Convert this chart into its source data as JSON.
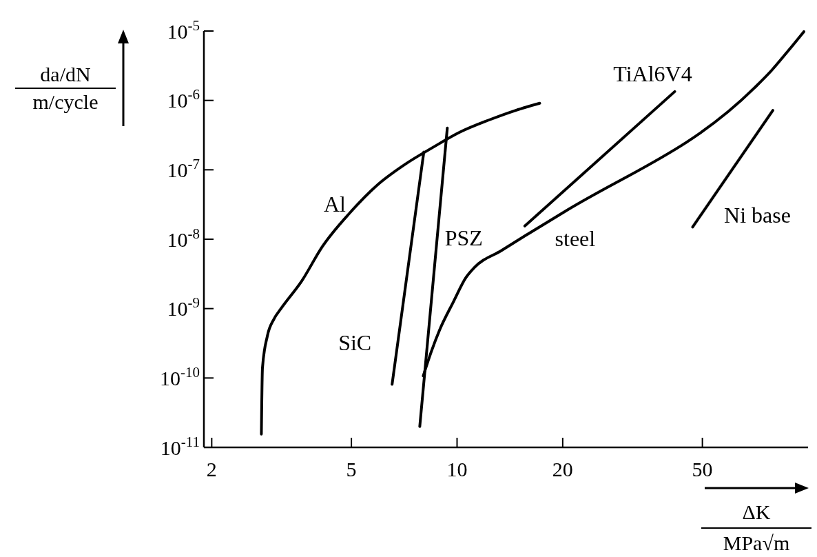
{
  "chart_data": {
    "type": "line",
    "xlabel": "ΔK\nMPa√m",
    "ylabel": "da/dN\nm/cycle",
    "log": "xy",
    "xlim": [
      1.9,
      100
    ],
    "ylim": [
      1e-11,
      1e-05
    ],
    "xticks": [
      2,
      5,
      10,
      20,
      50
    ],
    "yticks": [
      {
        "value": 1e-11,
        "label": "10$^{-11}$"
      },
      {
        "value": 1e-10,
        "label": "10$^{-10}$"
      },
      {
        "value": 1e-09,
        "label": "10$^{-9}$"
      },
      {
        "value": 1e-08,
        "label": "10$^{-8}$"
      },
      {
        "value": 1e-07,
        "label": "10$^{-7}$"
      },
      {
        "value": 1e-06,
        "label": "10$^{-6}$"
      },
      {
        "value": 1e-05,
        "label": "10$^{-5}$"
      }
    ],
    "grid": false,
    "series": [
      {
        "name": "Al",
        "color": "#000000",
        "x": [
          2.77,
          2.79,
          2.88,
          3.01,
          3.15,
          3.61,
          4.13,
          4.95,
          5.94,
          7.11,
          8.53,
          10.2,
          12.3,
          14.7,
          17.2
        ],
        "values": [
          1.55e-11,
          1.4e-10,
          4e-10,
          7.1e-10,
          1e-09,
          2.5e-09,
          7.8e-09,
          2.4e-08,
          6.1e-08,
          1.2e-07,
          2.1e-07,
          3.5e-07,
          5.2e-07,
          7.2e-07,
          9.1e-07
        ]
      },
      {
        "name": "SiC",
        "color": "#000000",
        "x": [
          6.53,
          8.04
        ],
        "values": [
          8.1e-11,
          1.8e-07
        ]
      },
      {
        "name": "PSZ",
        "color": "#000000",
        "x": [
          7.83,
          9.38
        ],
        "values": [
          2e-11,
          4e-07
        ]
      },
      {
        "name": "steel",
        "color": "#000000",
        "x": [
          8.01,
          8.34,
          8.93,
          9.77,
          10.6,
          11.2,
          13.4,
          16.1,
          20,
          70.2,
          78.7,
          88.1,
          97.3
        ],
        "values": [
          1.07e-10,
          2e-10,
          5e-10,
          1.26e-09,
          2.8e-09,
          3.9e-09,
          6.9e-09,
          1.23e-08,
          2.4e-08,
          1.5e-06,
          2.7e-06,
          5.3e-06,
          9.8e-06
        ]
      },
      {
        "name": "TiAl6V4",
        "color": "#000000",
        "x": [
          15.6,
          41.7
        ],
        "values": [
          1.55e-08,
          1.34e-06
        ]
      },
      {
        "name": "Ni base",
        "color": "#000000",
        "x": [
          46.9,
          79.4
        ],
        "values": [
          1.5e-08,
          7.2e-07
        ]
      }
    ]
  }
}
